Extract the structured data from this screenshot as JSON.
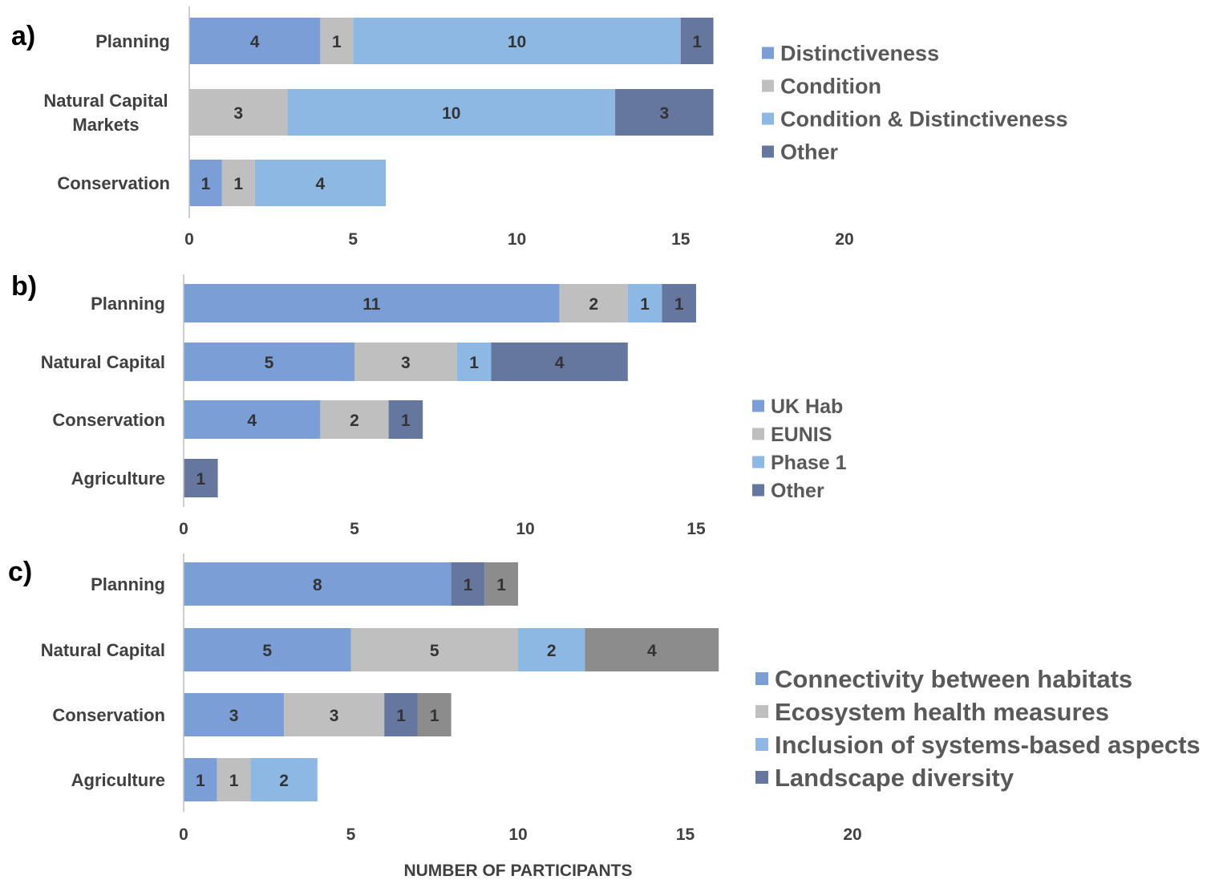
{
  "x_axis_title": "NUMBER OF PARTICIPANTS",
  "colors": {
    "blue": "#7b9ed6",
    "grey": "#bfbfbf",
    "lightblue": "#8db8e3",
    "darkblue": "#66779f",
    "darkgrey": "#8c8c8c"
  },
  "chart_data": [
    {
      "panel": "a)",
      "type": "bar",
      "orientation": "horizontal",
      "stacked": true,
      "categories": [
        "Planning",
        "Natural Capital Markets",
        "Conservation"
      ],
      "category_lines": [
        [
          "Planning"
        ],
        [
          "Natural Capital",
          "Markets"
        ],
        [
          "Conservation"
        ]
      ],
      "series": [
        {
          "name": "Distinctiveness",
          "values": [
            4,
            0,
            1
          ],
          "color_key": "blue"
        },
        {
          "name": "Condition",
          "values": [
            1,
            3,
            1
          ],
          "color_key": "grey"
        },
        {
          "name": "Condition & Distinctiveness",
          "values": [
            10,
            10,
            4
          ],
          "color_key": "lightblue"
        },
        {
          "name": "Other",
          "values": [
            1,
            3,
            0
          ],
          "color_key": "darkblue"
        }
      ],
      "xlim": [
        0,
        20
      ],
      "xticks": [
        0,
        5,
        10,
        15,
        20
      ],
      "legend_position": "right"
    },
    {
      "panel": "b)",
      "type": "bar",
      "orientation": "horizontal",
      "stacked": true,
      "categories": [
        "Planning",
        "Natural Capital",
        "Conservation",
        "Agriculture"
      ],
      "category_lines": [
        [
          "Planning"
        ],
        [
          "Natural Capital"
        ],
        [
          "Conservation"
        ],
        [
          "Agriculture"
        ]
      ],
      "series": [
        {
          "name": "UK Hab",
          "values": [
            11,
            5,
            4,
            0
          ],
          "color_key": "blue"
        },
        {
          "name": "EUNIS",
          "values": [
            2,
            3,
            2,
            0
          ],
          "color_key": "grey"
        },
        {
          "name": "Phase 1",
          "values": [
            1,
            1,
            0,
            0
          ],
          "color_key": "lightblue"
        },
        {
          "name": "Other",
          "values": [
            1,
            4,
            1,
            1
          ],
          "color_key": "darkblue"
        }
      ],
      "xlim": [
        0,
        15
      ],
      "xticks": [
        0,
        5,
        10,
        15
      ],
      "legend_position": "right"
    },
    {
      "panel": "c)",
      "type": "bar",
      "orientation": "horizontal",
      "stacked": true,
      "categories": [
        "Planning",
        "Natural Capital",
        "Conservation",
        "Agriculture"
      ],
      "category_lines": [
        [
          "Planning"
        ],
        [
          "Natural Capital"
        ],
        [
          "Conservation"
        ],
        [
          "Agriculture"
        ]
      ],
      "series": [
        {
          "name": "Connectivity between habitats",
          "values": [
            8,
            5,
            3,
            1
          ],
          "color_key": "blue"
        },
        {
          "name": "Ecosystem health measures",
          "values": [
            0,
            5,
            3,
            1
          ],
          "color_key": "grey"
        },
        {
          "name": "Inclusion of systems-based aspects",
          "values": [
            0,
            2,
            0,
            2
          ],
          "color_key": "lightblue"
        },
        {
          "name": "Landscape diversity",
          "values": [
            1,
            0,
            1,
            0
          ],
          "color_key": "darkblue"
        },
        {
          "name": "",
          "values": [
            1,
            4,
            1,
            0
          ],
          "color_key": "darkgrey",
          "in_legend": false
        }
      ],
      "xlim": [
        0,
        20
      ],
      "xticks": [
        0,
        5,
        10,
        15,
        20
      ],
      "legend_position": "right"
    }
  ]
}
